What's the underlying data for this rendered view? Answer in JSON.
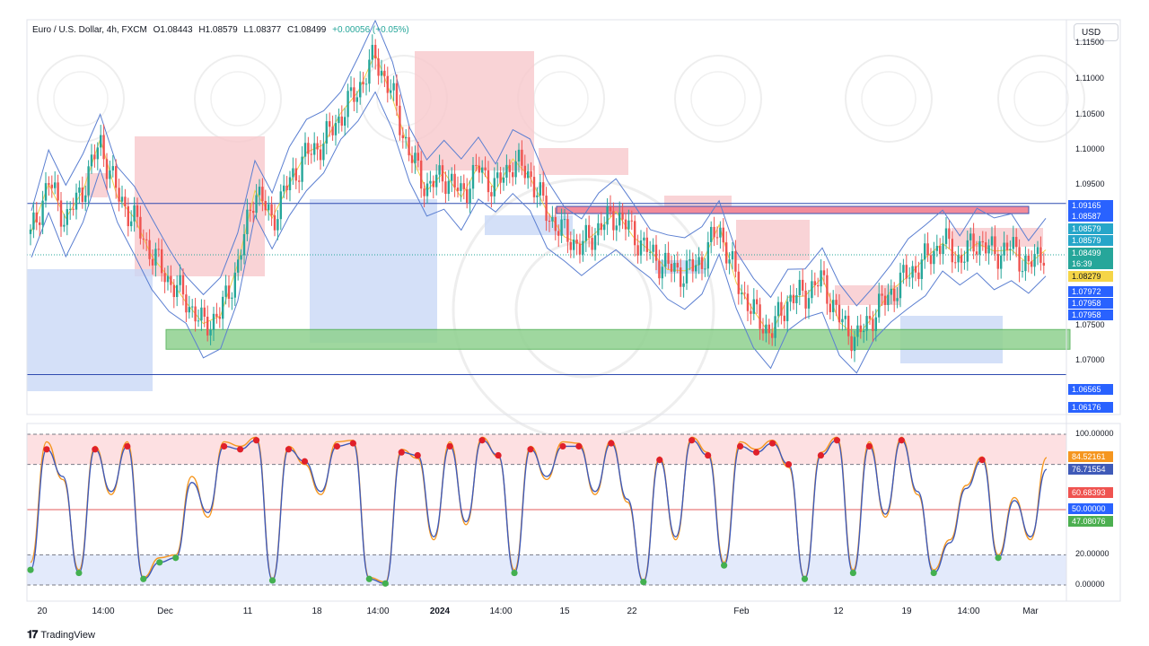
{
  "header": {
    "symbol": "Euro / U.S. Dollar, 4h, FXCM",
    "open": "O1.08443",
    "high": "H1.08579",
    "low": "L1.08377",
    "close": "C1.08499",
    "change": "+0.00056 (+0.05%)"
  },
  "currency_button": "USD",
  "footer": {
    "brand": "TradingView"
  },
  "colors": {
    "up": "#26a69a",
    "down": "#ef5350",
    "bb": "#5b7fd1",
    "ma": "#f0d24a",
    "supply": "#f8c8cc",
    "demand": "#c9d8f6",
    "zone_green": "#8fd18f",
    "k_line": "#f5961f",
    "d_line": "#3f5ab8"
  },
  "price_axis": {
    "ticks": [
      "1.11500",
      "1.11000",
      "1.10500",
      "1.10000",
      "1.09500",
      "1.07500",
      "1.07000"
    ],
    "tags": [
      {
        "text": "1.09165",
        "color": "#2962ff"
      },
      {
        "text": "1.08587",
        "color": "#2962ff"
      },
      {
        "text": "1.08579",
        "color": "#26a6c9"
      },
      {
        "text": "1.08579",
        "color": "#26a6c9"
      },
      {
        "text": "1.08499",
        "color": "#26a69a"
      },
      {
        "text": "16:39",
        "color": "#26a69a"
      },
      {
        "text": "1.08279",
        "color": "#f5d547"
      },
      {
        "text": "1.07972",
        "color": "#2962ff"
      },
      {
        "text": "1.07958",
        "color": "#2962ff"
      },
      {
        "text": "1.07958",
        "color": "#2962ff"
      },
      {
        "text": "1.06565",
        "color": "#2962ff"
      },
      {
        "text": "1.06176",
        "color": "#2962ff"
      }
    ]
  },
  "osc_axis": {
    "ticks": [
      "100.00000",
      "20.00000",
      "0.00000"
    ],
    "tags": [
      {
        "text": "84.52161",
        "color": "#f5961f"
      },
      {
        "text": "76.71554",
        "color": "#3f5ab8"
      },
      {
        "text": "60.68393",
        "color": "#ef5350"
      },
      {
        "text": "50.00000",
        "color": "#2962ff"
      },
      {
        "text": "47.08076",
        "color": "#4caf50"
      }
    ]
  },
  "time_axis": [
    "20",
    "14:00",
    "Dec",
    "11",
    "18",
    "14:00",
    "2024",
    "14:00",
    "15",
    "22",
    "Feb",
    "12",
    "19",
    "14:00",
    "Mar"
  ],
  "chart_data": [
    {
      "type": "line",
      "title": "Euro / U.S. Dollar, 4h, FXCM",
      "ylim": [
        1.0615,
        1.116
      ],
      "x": [
        "20",
        "14:00",
        "Dec",
        "11",
        "18",
        "14:00",
        "2024",
        "14:00",
        "15",
        "22",
        "Feb",
        "12",
        "19",
        "14:00",
        "Mar"
      ],
      "close_path": [
        1.087,
        1.095,
        1.089,
        1.094,
        1.101,
        1.093,
        1.089,
        1.084,
        1.08,
        1.077,
        1.073,
        1.075,
        1.082,
        1.094,
        1.089,
        1.095,
        1.099,
        1.101,
        1.105,
        1.109,
        1.114,
        1.108,
        1.099,
        1.094,
        1.096,
        1.093,
        1.097,
        1.094,
        1.098,
        1.096,
        1.09,
        1.087,
        1.085,
        1.088,
        1.09,
        1.087,
        1.084,
        1.082,
        1.081,
        1.083,
        1.088,
        1.08,
        1.075,
        1.072,
        1.077,
        1.078,
        1.08,
        1.074,
        1.071,
        1.075,
        1.078,
        1.081,
        1.083,
        1.086,
        1.083,
        1.086,
        1.084,
        1.085,
        1.082,
        1.085
      ],
      "levels": [
        1.09165,
        1.06565
      ],
      "zones": [
        {
          "name": "support",
          "from": 1.0695,
          "to": 1.0725
        }
      ]
    },
    {
      "type": "line",
      "ylim": [
        0,
        100
      ],
      "levels": [
        100,
        80,
        50,
        20,
        0
      ],
      "series": [
        {
          "values": [
            15,
            95,
            70,
            10,
            92,
            60,
            95,
            5,
            18,
            20,
            72,
            45,
            95,
            92,
            98,
            4,
            92,
            80,
            60,
            95,
            96,
            5,
            2,
            90,
            84,
            30,
            95,
            40,
            98,
            85,
            10,
            92,
            70,
            95,
            94,
            60,
            96,
            55,
            3,
            85,
            30,
            98,
            88,
            15,
            95,
            90,
            96,
            78,
            5,
            88,
            98,
            10,
            95,
            45,
            98,
            60,
            10,
            30,
            66,
            85,
            20,
            58,
            30,
            84.5
          ]
        },
        {
          "values": [
            10,
            90,
            72,
            8,
            90,
            62,
            92,
            4,
            15,
            18,
            68,
            48,
            92,
            90,
            96,
            3,
            90,
            82,
            62,
            92,
            94,
            4,
            1,
            88,
            86,
            32,
            92,
            42,
            96,
            86,
            8,
            90,
            72,
            92,
            92,
            62,
            94,
            57,
            2,
            83,
            32,
            96,
            86,
            13,
            92,
            88,
            94,
            80,
            4,
            86,
            96,
            8,
            92,
            47,
            96,
            62,
            8,
            28,
            64,
            83,
            18,
            56,
            32,
            76.7
          ]
        }
      ]
    }
  ]
}
